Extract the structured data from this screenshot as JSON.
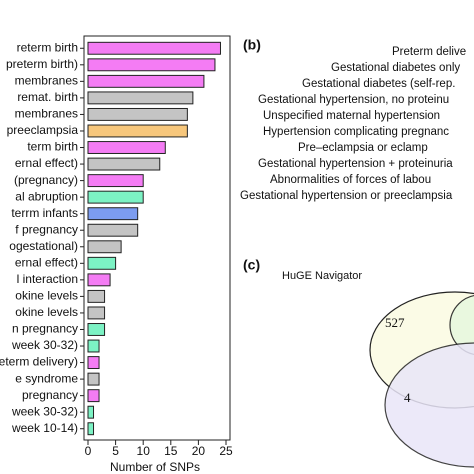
{
  "chart_data": {
    "type": "barh",
    "xlabel": "Number of SNPs",
    "categories": [
      "reterm birth",
      "preterm birth)",
      "membranes",
      "remat. birth",
      "membranes",
      "preeclampsia",
      "term birth",
      "ernal effect)",
      "(pregnancy)",
      "al abruption",
      "terrm infants",
      "f pregnancy",
      "ogestational)",
      "ernal effect)",
      "l interaction",
      "okine levels",
      "okine levels",
      "n pregnancy",
      "week 30-32)",
      "preterm delivery)",
      "e syndrome",
      "pregnancy",
      "week 30-32)",
      "week 10-14)"
    ],
    "values": [
      24,
      23,
      21,
      19,
      18,
      18,
      14,
      13,
      10,
      10,
      9,
      9,
      6,
      5,
      4,
      3,
      3,
      3,
      2,
      2,
      2,
      2,
      1,
      1
    ],
    "colors": [
      "#f47cf4",
      "#f47cf4",
      "#f47cf4",
      "#c4c4c4",
      "#c4c4c4",
      "#f7c77c",
      "#f47cf4",
      "#c4c4c4",
      "#f47cf4",
      "#7cf2c4",
      "#7c9cf0",
      "#c4c4c4",
      "#c4c4c4",
      "#7cf2c4",
      "#f47cf4",
      "#c4c4c4",
      "#c4c4c4",
      "#7cf2c4",
      "#7cf2c4",
      "#f47cf4",
      "#c4c4c4",
      "#f47cf4",
      "#7cf2c4",
      "#7cf2c4"
    ],
    "xlim": [
      0,
      25
    ],
    "xticks": [
      0,
      5,
      10,
      15,
      20,
      25
    ]
  },
  "panel_b": {
    "label": "(b)",
    "lines": [
      "Preterm delive",
      "Gestational diabetes only",
      "Gestational diabetes (self-rep.",
      "Gestational hypertension, no proteinu",
      "Unspecified maternal hypertension",
      "Hypertension complicating pregnanc",
      "Pre–eclampsia or eclamp",
      "Gestational hypertension + proteinuria",
      "Abnormalities of forces of labou",
      "Gestational hypertension or preeclampsia"
    ]
  },
  "panel_c": {
    "label": "(c)",
    "title": "HuGE Navigator",
    "counts": [
      "527",
      "4"
    ]
  }
}
